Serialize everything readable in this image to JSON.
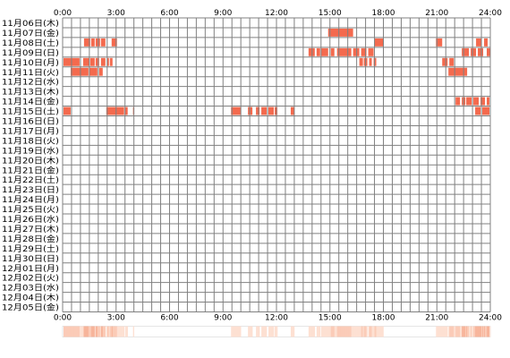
{
  "chart_data": {
    "type": "heatmap",
    "title": "",
    "x_axis": {
      "unit": "time of day",
      "min": "0:00",
      "max": "24:00",
      "tick_labels": [
        "0:00",
        "3:00",
        "6:00",
        "9:00",
        "12:00",
        "15:00",
        "18:00",
        "21:00",
        "24:00"
      ]
    },
    "rows": [
      "11月06日(木)",
      "11月07日(金)",
      "11月08日(土)",
      "11月09日(日)",
      "11月10日(月)",
      "11月11日(火)",
      "11月12日(水)",
      "11月13日(木)",
      "11月14日(金)",
      "11月15日(土)",
      "11月16日(日)",
      "11月17日(月)",
      "11月18日(火)",
      "11月19日(水)",
      "11月20日(木)",
      "11月21日(金)",
      "11月22日(土)",
      "11月23日(日)",
      "11月24日(月)",
      "11月25日(火)",
      "11月26日(水)",
      "11月27日(木)",
      "11月28日(金)",
      "11月29日(土)",
      "11月30日(日)",
      "12月01日(月)",
      "12月02日(火)",
      "12月03日(水)",
      "12月04日(木)",
      "12月05日(金)"
    ],
    "activity_hours": [
      [],
      [
        [
          14.9,
          16.3
        ]
      ],
      [
        [
          1.2,
          1.55
        ],
        [
          1.6,
          1.8
        ],
        [
          1.85,
          2.1
        ],
        [
          2.15,
          2.4
        ],
        [
          2.75,
          3.05
        ],
        [
          17.5,
          18.0
        ],
        [
          20.95,
          21.3
        ],
        [
          23.2,
          23.5
        ],
        [
          23.65,
          23.85
        ]
      ],
      [
        [
          13.8,
          14.15
        ],
        [
          14.25,
          14.45
        ],
        [
          14.5,
          14.9
        ],
        [
          15.05,
          15.25
        ],
        [
          15.4,
          16.2
        ],
        [
          16.3,
          16.65
        ],
        [
          16.75,
          17.05
        ],
        [
          17.15,
          17.45
        ],
        [
          22.4,
          22.8
        ],
        [
          22.9,
          23.2
        ],
        [
          23.3,
          23.6
        ],
        [
          23.8,
          24.0
        ]
      ],
      [
        [
          0.05,
          0.95
        ],
        [
          1.15,
          1.5
        ],
        [
          1.55,
          1.8
        ],
        [
          1.85,
          2.05
        ],
        [
          2.15,
          2.4
        ],
        [
          2.5,
          2.6
        ],
        [
          2.65,
          2.8
        ],
        [
          16.65,
          16.85
        ],
        [
          16.9,
          17.1
        ],
        [
          17.2,
          17.35
        ],
        [
          17.45,
          17.6
        ],
        [
          21.3,
          21.6
        ],
        [
          21.7,
          21.95
        ]
      ],
      [
        [
          0.45,
          1.45
        ],
        [
          1.5,
          1.95
        ],
        [
          2.05,
          2.25
        ],
        [
          21.65,
          22.7
        ]
      ],
      [],
      [],
      [
        [
          22.05,
          22.3
        ],
        [
          22.4,
          22.6
        ],
        [
          22.65,
          22.95
        ],
        [
          23.05,
          23.35
        ],
        [
          23.45,
          23.7
        ],
        [
          23.8,
          23.95
        ]
      ],
      [
        [
          0.05,
          0.45
        ],
        [
          2.45,
          3.45
        ],
        [
          3.5,
          3.65
        ],
        [
          3.95,
          4.0
        ],
        [
          9.45,
          10.0
        ],
        [
          10.4,
          10.65
        ],
        [
          10.85,
          11.05
        ],
        [
          11.15,
          11.45
        ],
        [
          11.55,
          11.85
        ],
        [
          11.9,
          12.05
        ],
        [
          12.8,
          13.0
        ],
        [
          23.15,
          23.45
        ],
        [
          23.55,
          23.95
        ]
      ],
      [],
      [],
      [],
      [],
      [],
      [],
      [],
      [],
      [],
      [],
      [],
      [],
      [],
      [],
      [],
      [],
      [],
      [],
      [],
      []
    ],
    "colors": {
      "activity": "#f46a4e",
      "grid": "#808080",
      "summary_light": "#fde0d2",
      "summary_mid": "#fbcbb7",
      "summary_dark": "#f7b49a"
    },
    "summary_bar": true
  }
}
